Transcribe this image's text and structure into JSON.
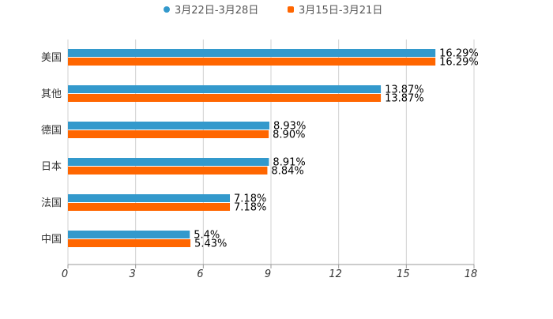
{
  "chart_data": {
    "type": "bar",
    "orientation": "horizontal",
    "categories": [
      "美国",
      "其他",
      "德国",
      "日本",
      "法国",
      "中国"
    ],
    "series": [
      {
        "name": "3月22日-3月28日",
        "color": "#3399cc",
        "values": [
          16.29,
          13.87,
          8.93,
          8.91,
          7.18,
          5.4
        ],
        "labels": [
          "16.29%",
          "13.87%",
          "8.93%",
          "8.91%",
          "7.18%",
          "5.4%"
        ]
      },
      {
        "name": "3月15日-3月21日",
        "color": "#ff6600",
        "values": [
          16.29,
          13.87,
          8.9,
          8.84,
          7.18,
          5.43
        ],
        "labels": [
          "16.29%",
          "13.87%",
          "8.90%",
          "8.84%",
          "7.18%",
          "5.43%"
        ]
      }
    ],
    "xlim": [
      0,
      18
    ],
    "xticks": [
      "0",
      "3",
      "6",
      "9",
      "12",
      "15",
      "18"
    ],
    "grid": true,
    "legend": "top-center"
  }
}
